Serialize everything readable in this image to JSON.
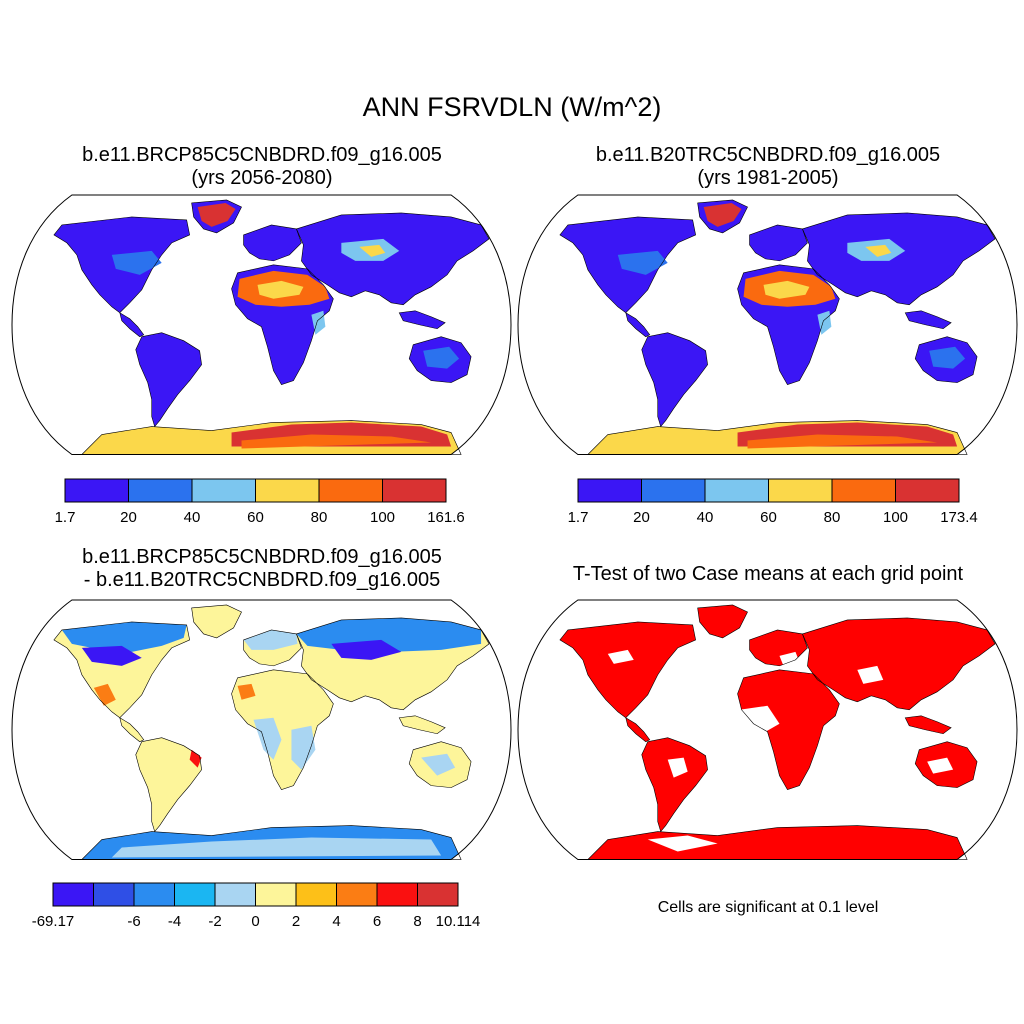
{
  "figure": {
    "title": "ANN FSRVDLN (W/m^2)",
    "footnote": "Cells are significant at 0.1 level"
  },
  "panels": [
    {
      "id": "case1",
      "title_line1": "b.e11.BRCP85C5CNBDRD.f09_g16.005",
      "title_line2": "(yrs 2056-2080)",
      "colorbar": {
        "colors": [
          "#3b16f5",
          "#2b72ee",
          "#7cc6ef",
          "#fbd84a",
          "#fa6a0f",
          "#d93232"
        ],
        "tick_labels": [
          "1.7",
          "20",
          "40",
          "60",
          "80",
          "100",
          "161.6"
        ]
      }
    },
    {
      "id": "case2",
      "title_line1": "b.e11.B20TRC5CNBDRD.f09_g16.005",
      "title_line2": "(yrs 1981-2005)",
      "colorbar": {
        "colors": [
          "#3b16f5",
          "#2b72ee",
          "#7cc6ef",
          "#fbd84a",
          "#fa6a0f",
          "#d93232"
        ],
        "tick_labels": [
          "1.7",
          "20",
          "40",
          "60",
          "80",
          "100",
          "173.4"
        ]
      }
    },
    {
      "id": "difference",
      "title_line1": "b.e11.BRCP85C5CNBDRD.f09_g16.005",
      "title_line2": "- b.e11.B20TRC5CNBDRD.f09_g16.005",
      "colorbar": {
        "colors": [
          "#3b16f5",
          "#2f4fe6",
          "#2b8cf0",
          "#1bb6f2",
          "#a9d5f2",
          "#fdf59a",
          "#fdc018",
          "#fb7d14",
          "#fa1010",
          "#d93232"
        ],
        "tick_labels": [
          "-69.17",
          "",
          "-6",
          "-4",
          "-2",
          "0",
          "2",
          "4",
          "6",
          "8",
          "10.114"
        ]
      }
    },
    {
      "id": "ttest",
      "title_line1": "T-Test of two Case means at each grid point",
      "title_line2": "",
      "significant_color": "#ff0000"
    }
  ]
}
